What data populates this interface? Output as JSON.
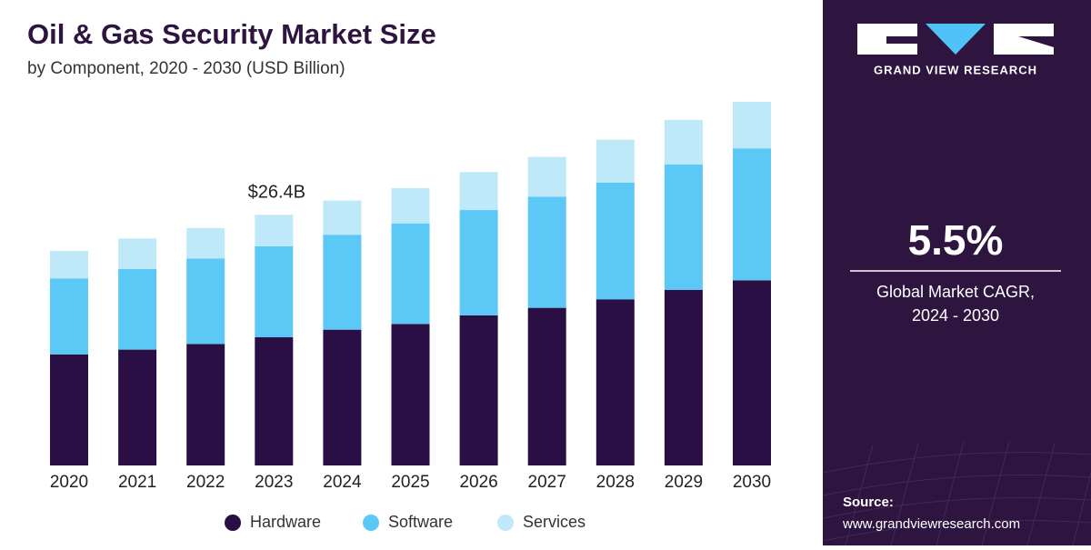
{
  "chart_data": {
    "type": "stacked_bar",
    "title": "Oil & Gas Security Market Size",
    "subtitle": "by Component, 2020 - 2030 (USD Billion)",
    "annotation": "$26.4B",
    "categories": [
      "2020",
      "2021",
      "2022",
      "2023",
      "2024",
      "2025",
      "2026",
      "2027",
      "2028",
      "2029",
      "2030"
    ],
    "series": [
      {
        "name": "Hardware",
        "color": "#2a0f45",
        "values": [
          11.7,
          12.2,
          12.8,
          13.5,
          14.3,
          14.9,
          15.8,
          16.6,
          17.5,
          18.5,
          19.5
        ]
      },
      {
        "name": "Software",
        "color": "#5bc8f5",
        "values": [
          8.0,
          8.5,
          9.0,
          9.6,
          10.0,
          10.6,
          11.1,
          11.7,
          12.3,
          13.2,
          13.9
        ]
      },
      {
        "name": "Services",
        "color": "#bfe8f8",
        "values": [
          2.9,
          3.2,
          3.2,
          3.3,
          3.6,
          3.7,
          4.0,
          4.2,
          4.5,
          4.7,
          4.9
        ]
      }
    ]
  },
  "panel": {
    "brand": "GRAND VIEW RESEARCH",
    "cagr": "5.5%",
    "cagr_label_1": "Global Market CAGR,",
    "cagr_label_2": "2024 - 2030",
    "source_label": "Source:",
    "source_url": "www.grandviewresearch.com"
  }
}
